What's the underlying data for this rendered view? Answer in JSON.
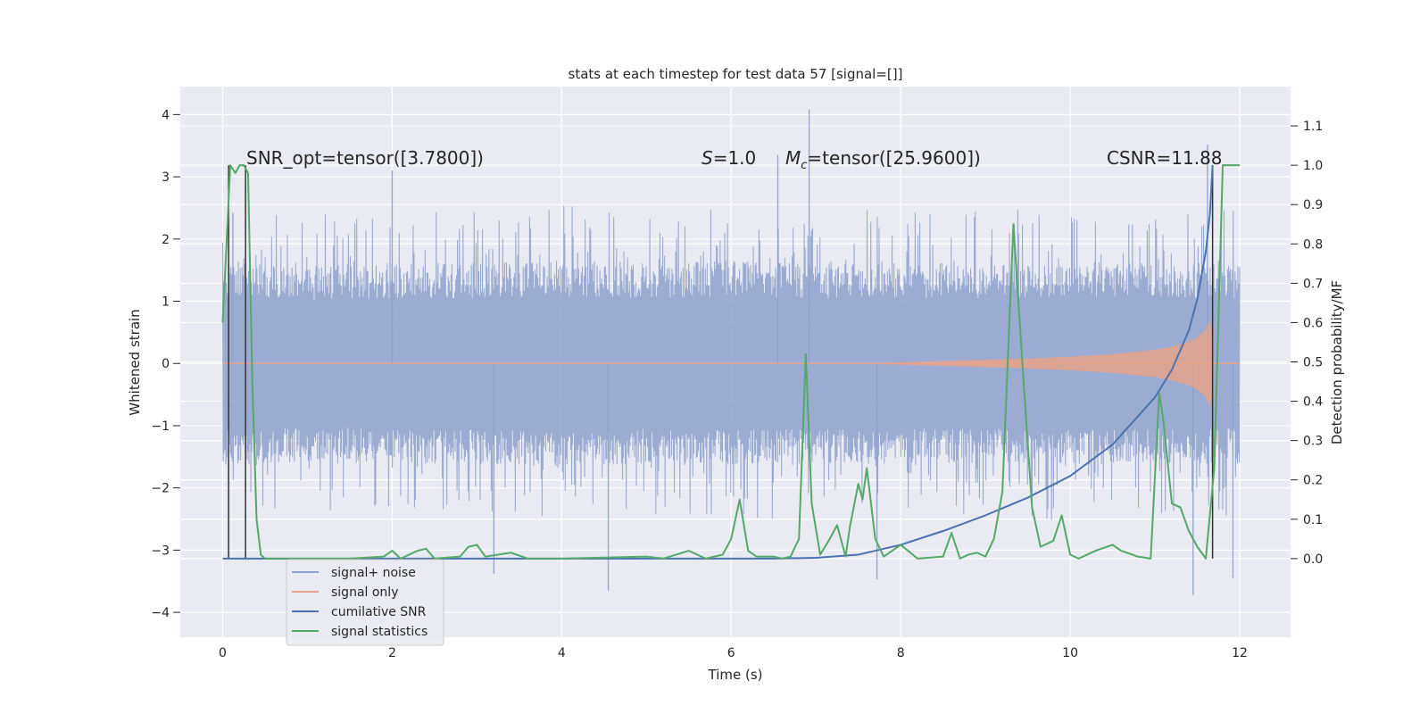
{
  "chart_data": {
    "type": "line",
    "title": "stats at each timestep for test data 57 [signal=[]]",
    "xlabel": "Time (s)",
    "ylabel_left": "Whitened strain",
    "ylabel_right": "Detection probability/MF",
    "xlim": [
      -0.5,
      12.6
    ],
    "ylim_left": [
      -4.4,
      4.45
    ],
    "ylim_right": [
      -0.2,
      1.2
    ],
    "xticks": [
      0,
      2,
      4,
      6,
      8,
      10,
      12
    ],
    "xtick_labels": [
      "0",
      "2",
      "4",
      "6",
      "8",
      "10",
      "12"
    ],
    "yticks_left": [
      -4,
      -3,
      -2,
      -1,
      0,
      1,
      2,
      3,
      4
    ],
    "ytick_labels_left": [
      "−4",
      "−3",
      "−2",
      "−1",
      "0",
      "1",
      "2",
      "3",
      "4"
    ],
    "yticks_right": [
      0.0,
      0.1,
      0.2,
      0.3,
      0.4,
      0.5,
      0.6,
      0.7,
      0.8,
      0.9,
      1.0,
      1.1
    ],
    "ytick_labels_right": [
      "0.0",
      "0.1",
      "0.2",
      "0.3",
      "0.4",
      "0.5",
      "0.6",
      "0.7",
      "0.8",
      "0.9",
      "1.0",
      "1.1"
    ],
    "grid": true,
    "legend_position": "lower-left",
    "annotations": {
      "snr_opt": "SNR_opt=tensor([3.7800])",
      "s_var": "S",
      "s_val": "=1.0",
      "mc_var": "M",
      "mc_sub": "c",
      "mc_val": "=tensor([25.9600])",
      "csnr": "CSNR=11.88"
    },
    "series": [
      {
        "name": "signal+ noise",
        "axis": "left",
        "color": "#8da0cb",
        "style": "noise",
        "x_range": [
          0,
          12
        ],
        "band_envelope": {
          "x": [
            0,
            0.5,
            1,
            2,
            3,
            4,
            5,
            6,
            7,
            8,
            9,
            10,
            11,
            12
          ],
          "amp": [
            1.9,
            1.9,
            1.85,
            1.9,
            1.9,
            1.95,
            1.9,
            1.95,
            1.9,
            1.9,
            1.9,
            1.95,
            1.9,
            1.9
          ]
        },
        "spikes": [
          {
            "x": 6.92,
            "y": 4.08
          },
          {
            "x": 6.55,
            "y": 3.35
          },
          {
            "x": 11.62,
            "y": 3.52
          },
          {
            "x": 2.0,
            "y": 3.1
          },
          {
            "x": 4.55,
            "y": -3.65
          },
          {
            "x": 11.45,
            "y": -3.72
          },
          {
            "x": 7.72,
            "y": -3.47
          },
          {
            "x": 3.2,
            "y": -3.38
          },
          {
            "x": 11.92,
            "y": -3.45
          },
          {
            "x": 0.12,
            "y": 2.42
          }
        ]
      },
      {
        "name": "signal only",
        "axis": "left",
        "color": "#e5a28c",
        "style": "chirp",
        "x": [
          0,
          7.5,
          8,
          8.5,
          9,
          9.5,
          10,
          10.5,
          11,
          11.2,
          11.4,
          11.5,
          11.6,
          11.65,
          11.7,
          12
        ],
        "amplitude": [
          0,
          0,
          0.02,
          0.04,
          0.06,
          0.08,
          0.11,
          0.15,
          0.22,
          0.27,
          0.35,
          0.42,
          0.55,
          0.7,
          0.0,
          0.0
        ]
      },
      {
        "name": "cumilative SNR",
        "axis": "right",
        "color": "#4c72b0",
        "x": [
          0,
          6.5,
          7.0,
          7.5,
          8.0,
          8.5,
          9.0,
          9.5,
          10.0,
          10.5,
          11.0,
          11.2,
          11.4,
          11.5,
          11.6,
          11.65,
          11.68
        ],
        "values": [
          0.0,
          0.0,
          0.002,
          0.01,
          0.035,
          0.07,
          0.11,
          0.155,
          0.21,
          0.29,
          0.41,
          0.48,
          0.58,
          0.66,
          0.78,
          0.88,
          1.0
        ]
      },
      {
        "name": "signal statistics",
        "axis": "right",
        "color": "#55a868",
        "x": [
          0.0,
          0.05,
          0.09,
          0.15,
          0.2,
          0.25,
          0.3,
          0.35,
          0.4,
          0.45,
          0.5,
          1.0,
          1.5,
          1.9,
          2.0,
          2.1,
          2.3,
          2.4,
          2.5,
          2.8,
          2.9,
          3.0,
          3.1,
          3.4,
          3.6,
          4.0,
          5.0,
          5.2,
          5.5,
          5.7,
          5.8,
          5.9,
          6.0,
          6.1,
          6.2,
          6.3,
          6.5,
          6.6,
          6.7,
          6.8,
          6.88,
          6.95,
          7.05,
          7.15,
          7.25,
          7.35,
          7.4,
          7.5,
          7.55,
          7.6,
          7.7,
          7.8,
          8.0,
          8.2,
          8.5,
          8.6,
          8.7,
          8.8,
          8.9,
          9.0,
          9.1,
          9.2,
          9.33,
          9.45,
          9.55,
          9.65,
          9.8,
          9.9,
          10.0,
          10.1,
          10.2,
          10.3,
          10.5,
          10.6,
          10.8,
          10.95,
          11.05,
          11.1,
          11.2,
          11.3,
          11.4,
          11.5,
          11.6,
          11.7,
          11.8,
          12.0
        ],
        "values": [
          0.6,
          0.82,
          1.0,
          0.98,
          1.0,
          1.0,
          0.98,
          0.45,
          0.1,
          0.01,
          0.0,
          0.0,
          0.0,
          0.005,
          0.02,
          0.0,
          0.02,
          0.025,
          0.0,
          0.005,
          0.03,
          0.035,
          0.005,
          0.015,
          0.0,
          0.0,
          0.005,
          0.0,
          0.02,
          0.0,
          0.005,
          0.01,
          0.05,
          0.15,
          0.02,
          0.005,
          0.005,
          0.0,
          0.005,
          0.05,
          0.52,
          0.14,
          0.01,
          0.045,
          0.085,
          0.005,
          0.08,
          0.19,
          0.15,
          0.23,
          0.05,
          0.005,
          0.035,
          0.0,
          0.005,
          0.065,
          0.0,
          0.01,
          0.015,
          0.005,
          0.05,
          0.17,
          0.85,
          0.45,
          0.13,
          0.03,
          0.045,
          0.11,
          0.01,
          0.0,
          0.01,
          0.02,
          0.035,
          0.02,
          0.005,
          0.0,
          0.42,
          0.35,
          0.14,
          0.13,
          0.07,
          0.03,
          0.0,
          0.23,
          1.0,
          1.0
        ]
      }
    ],
    "vertical_lines": [
      {
        "x": 0.07,
        "y_range_right": [
          0.0,
          1.0
        ],
        "color": "#333333"
      },
      {
        "x": 0.27,
        "y_range_right": [
          0.0,
          1.0
        ],
        "color": "#333333"
      },
      {
        "x": 11.68,
        "y_range_right": [
          0.0,
          1.0
        ],
        "color": "#333333"
      }
    ]
  }
}
